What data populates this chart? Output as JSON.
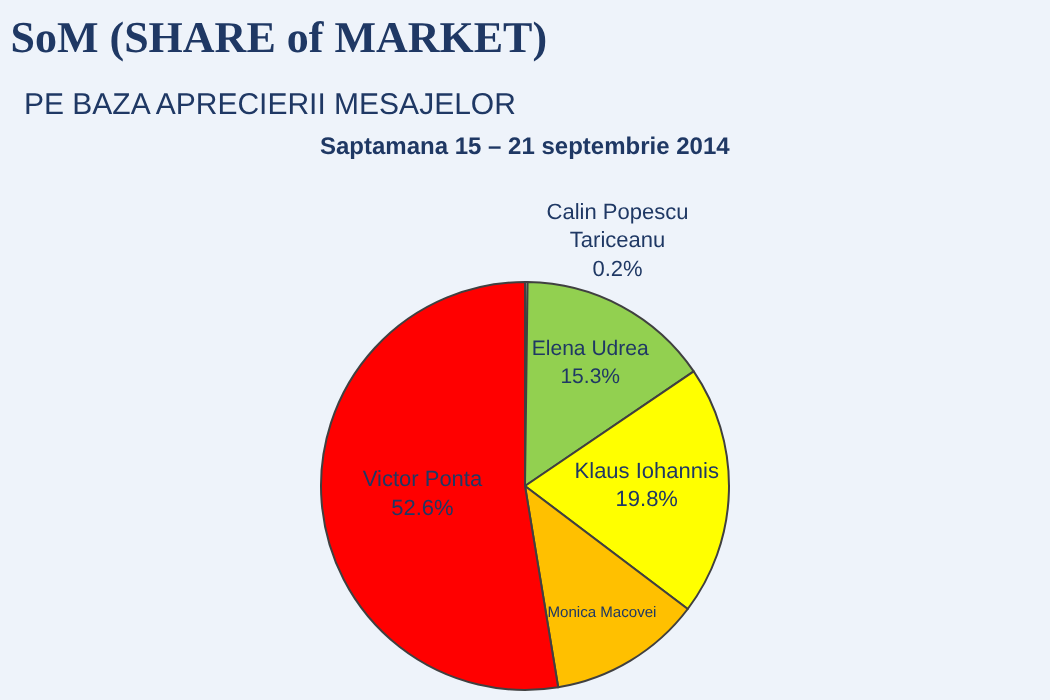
{
  "chart_data": {
    "type": "pie",
    "title": "SoM (SHARE of MARKET)",
    "subtitle": "PE BAZA APRECIERII MESAJELOR",
    "annotations": [
      "Saptamana 15 – 21 septembrie 2014"
    ],
    "categories": [
      "Calin Popescu Tariceanu",
      "Elena Udrea",
      "Klaus Iohannis",
      "Monica Macovei",
      "Victor Ponta"
    ],
    "values": [
      0.2,
      15.3,
      19.8,
      12.1,
      52.6
    ],
    "value_labels": [
      "0.2%",
      "15.3%",
      "19.8%",
      null,
      "52.6%"
    ],
    "colors": [
      "#f2f2f2",
      "#92d050",
      "#ffff00",
      "#ffc000",
      "#ff0000"
    ],
    "legend": false
  }
}
